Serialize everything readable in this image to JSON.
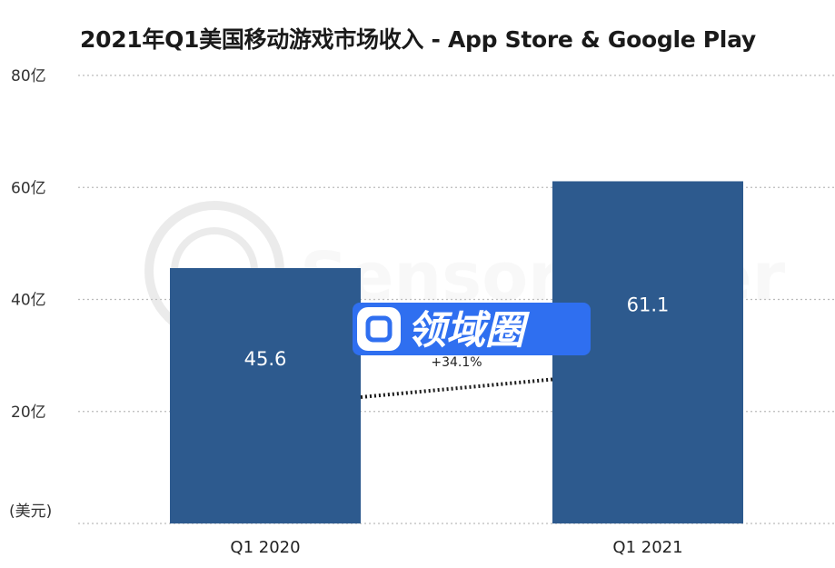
{
  "chart_data": {
    "type": "bar",
    "title": "2021年Q1美国移动游戏市场收入 - App Store & Google Play",
    "unit_label": "(美元)",
    "categories": [
      "Q1  2020",
      "Q1 2021"
    ],
    "values": [
      45.6,
      61.1
    ],
    "value_labels": [
      "45.6",
      "61.1"
    ],
    "y_ticks": [
      {
        "value": 20,
        "label": "20亿"
      },
      {
        "value": 40,
        "label": "40亿"
      },
      {
        "value": 60,
        "label": "60亿"
      },
      {
        "value": 80,
        "label": "80亿"
      }
    ],
    "ylim": [
      0,
      80
    ],
    "grid": true,
    "bar_color": "#2d5a8e",
    "annotation": "+34.1%"
  },
  "watermarks": {
    "sensor_tower": "SensorTower",
    "badge": "领域圈",
    "badge_color": "#2f6ff0"
  }
}
